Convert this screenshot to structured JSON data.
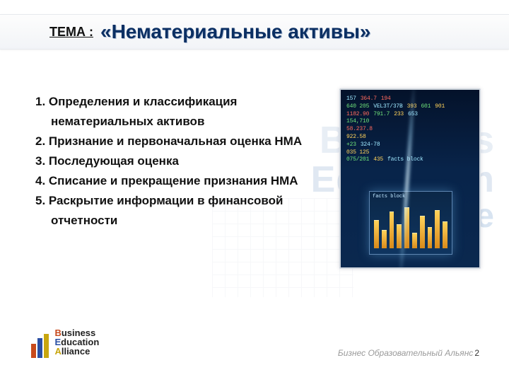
{
  "header": {
    "topic_label": "ТЕМА :",
    "topic_title": "«Нематериальные активы»"
  },
  "outline": {
    "items": [
      {
        "text": "1. Определения и классификация"
      },
      {
        "text": "нематериальных активов",
        "cont": true
      },
      {
        "text": "2. Признание и первоначальная оценка НМА"
      },
      {
        "text": "3.  Последующая оценка"
      },
      {
        "text": "4.  Списание  и прекращение признания НМА"
      },
      {
        "text": "5. Раскрытие информации в финансовой"
      },
      {
        "text": "отчетности",
        "cont": true
      }
    ]
  },
  "watermark": {
    "line1": "Business",
    "line2": "Education",
    "line3": "Alliance"
  },
  "side_graphic": {
    "rows": [
      [
        "157",
        "",
        "",
        "364.7",
        "",
        "194"
      ],
      [
        "640 205",
        "VEL3T/37B",
        "393",
        "601",
        "",
        "901"
      ],
      [
        "1182.90",
        "",
        "791.7",
        "233",
        "",
        "653"
      ],
      [
        "154,710",
        "",
        "",
        "",
        "",
        ""
      ],
      [
        "58.237.8",
        "",
        "",
        "",
        "",
        ""
      ],
      [
        "922.58",
        "",
        "",
        "",
        "",
        ""
      ],
      [
        "+23",
        "324-78",
        "",
        "",
        "",
        ""
      ],
      [
        "035 125",
        "",
        "",
        "",
        "",
        ""
      ],
      [
        "075/201",
        "435",
        "facts block",
        "",
        "",
        ""
      ]
    ],
    "row_colors": [
      [
        "sg-c",
        "",
        "",
        "sg-r",
        "",
        "sg-r"
      ],
      [
        "sg-g",
        "sg-c",
        "sg-y",
        "sg-g",
        "",
        "sg-y"
      ],
      [
        "sg-r",
        "",
        "sg-g",
        "sg-y",
        "",
        "sg-c"
      ],
      [
        "sg-g",
        "",
        "",
        "",
        "",
        ""
      ],
      [
        "sg-r",
        "",
        "",
        "",
        "",
        ""
      ],
      [
        "sg-y",
        "",
        "",
        "",
        "",
        ""
      ],
      [
        "sg-g",
        "sg-c",
        "",
        "",
        "",
        ""
      ],
      [
        "sg-y",
        "",
        "",
        "",
        "",
        ""
      ],
      [
        "sg-g",
        "sg-y",
        "sg-c",
        "",
        "",
        ""
      ]
    ],
    "window_header": "facts  block",
    "bars": [
      40,
      26,
      52,
      34,
      58,
      22,
      46,
      30,
      54,
      38
    ]
  },
  "logo": {
    "line1_initial": "B",
    "line1_rest": "usiness",
    "line2_initial": "E",
    "line2_rest": "ducation",
    "line3_initial": "A",
    "line3_rest": "lliance"
  },
  "footer": {
    "text": "Бизнес Образовательный Альянс",
    "page": "2"
  },
  "colors": {
    "title": "#0b2f63",
    "accent_orange": "#c84a1c",
    "accent_blue": "#2a4fa3",
    "accent_gold": "#c8a60e"
  }
}
